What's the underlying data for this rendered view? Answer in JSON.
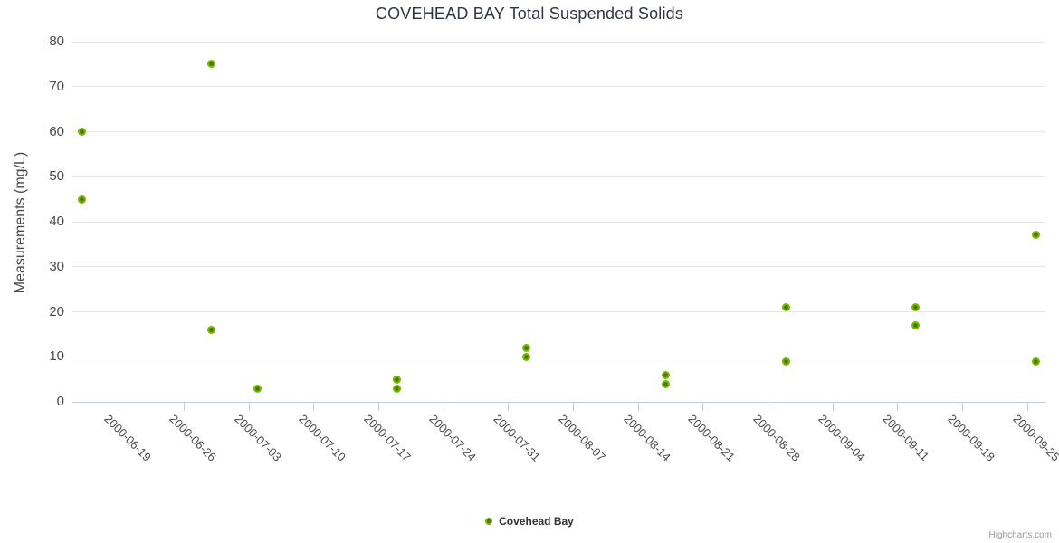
{
  "chart_data": {
    "type": "scatter",
    "title": "COVEHEAD BAY Total Suspended Solids",
    "xlabel": "",
    "ylabel": "Measurements (mg/L)",
    "ylim": [
      0,
      80
    ],
    "y_ticks": [
      0,
      10,
      20,
      30,
      40,
      50,
      60,
      70,
      80
    ],
    "xlim": [
      "2000-06-14",
      "2000-09-27"
    ],
    "x_tick_labels": [
      "2000-06-19",
      "2000-06-26",
      "2000-07-03",
      "2000-07-10",
      "2000-07-17",
      "2000-07-24",
      "2000-07-31",
      "2000-08-07",
      "2000-08-14",
      "2000-08-21",
      "2000-08-28",
      "2000-09-04",
      "2000-09-11",
      "2000-09-18",
      "2000-09-25"
    ],
    "grid": "horizontal",
    "legend_position": "bottom-center",
    "series": [
      {
        "name": "Covehead Bay",
        "color": "#7ab500",
        "points": [
          {
            "date": "2000-06-15",
            "value": 60
          },
          {
            "date": "2000-06-15",
            "value": 45
          },
          {
            "date": "2000-06-29",
            "value": 75
          },
          {
            "date": "2000-06-29",
            "value": 16
          },
          {
            "date": "2000-07-04",
            "value": 3
          },
          {
            "date": "2000-07-19",
            "value": 5
          },
          {
            "date": "2000-07-19",
            "value": 3
          },
          {
            "date": "2000-08-02",
            "value": 12
          },
          {
            "date": "2000-08-02",
            "value": 10
          },
          {
            "date": "2000-08-17",
            "value": 6
          },
          {
            "date": "2000-08-17",
            "value": 4
          },
          {
            "date": "2000-08-30",
            "value": 21
          },
          {
            "date": "2000-08-30",
            "value": 9
          },
          {
            "date": "2000-09-13",
            "value": 21
          },
          {
            "date": "2000-09-13",
            "value": 17
          },
          {
            "date": "2000-09-26",
            "value": 37
          },
          {
            "date": "2000-09-26",
            "value": 9
          }
        ]
      }
    ]
  },
  "colors": {
    "marker": "#7ab500",
    "marker_center": "#3e7c00",
    "axis_line": "#c0d0e0",
    "gridline": "#e7e7e7",
    "title_text": "#2f3542",
    "axis_text": "#4a4a4a",
    "legend_text": "#333333",
    "credits_text": "#999999"
  },
  "credits": {
    "label": "Highcharts.com"
  }
}
